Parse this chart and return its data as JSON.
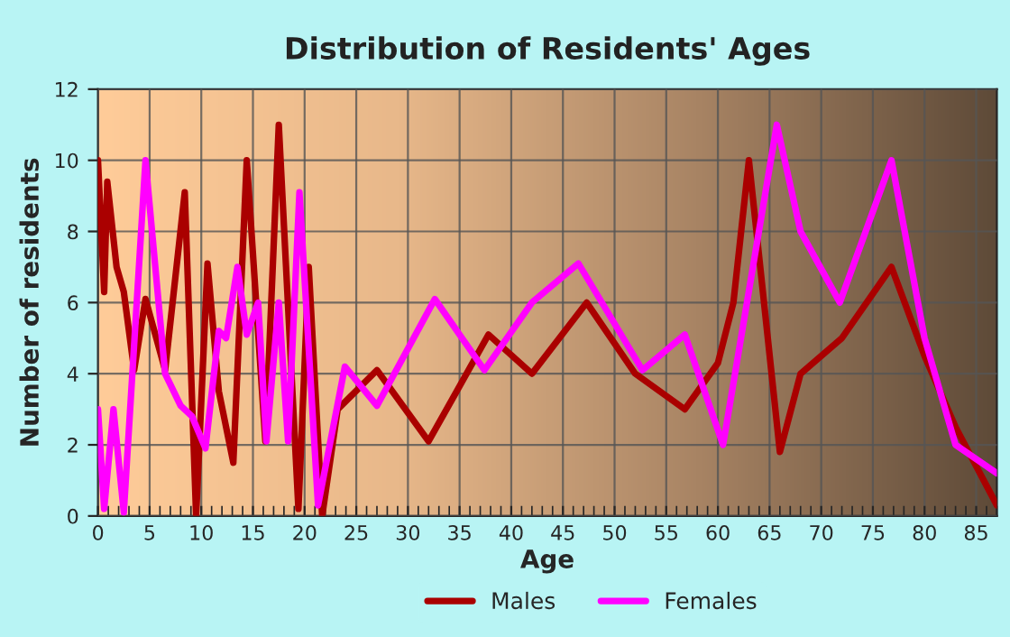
{
  "chart_data": {
    "type": "line",
    "title": "Distribution of Residents' Ages",
    "xlabel": "Age",
    "ylabel": "Number of residents",
    "xlim": [
      0,
      87
    ],
    "xticks": [
      0,
      5,
      10,
      15,
      20,
      25,
      30,
      35,
      40,
      45,
      50,
      55,
      60,
      65,
      70,
      75,
      80,
      85
    ],
    "ylim": [
      0,
      12
    ],
    "yticks": [
      0,
      2,
      4,
      6,
      8,
      10,
      12
    ],
    "grid": true,
    "legend": "bottom",
    "marker": "none",
    "line_style": "solid",
    "series": [
      {
        "name": "Males",
        "color": "#aa0000",
        "x": [
          0,
          0.6,
          0.9,
          1.8,
          2.5,
          3.5,
          4.6,
          6.5,
          8.4,
          9.5,
          10.6,
          11.7,
          13.1,
          14.4,
          16.2,
          17.5,
          19.4,
          20.4,
          21.7,
          23.2,
          27,
          32,
          37.8,
          42,
          47.3,
          52,
          56.8,
          60,
          61.5,
          63,
          66,
          68,
          72,
          76.8,
          80,
          83,
          87
        ],
        "values": [
          10,
          6.3,
          9.4,
          7,
          6.3,
          4.1,
          6.1,
          4.1,
          9.1,
          0,
          7.1,
          3.5,
          1.5,
          10,
          2.1,
          11,
          0.2,
          7,
          0,
          3,
          4.1,
          2.1,
          5.1,
          4,
          6,
          4,
          3,
          4.3,
          6,
          10,
          1.8,
          4,
          5,
          7,
          4.5,
          2.5,
          0.3
        ]
      },
      {
        "name": "Females",
        "color": "#ff00ff",
        "x": [
          0,
          0.6,
          1.5,
          2.5,
          4.6,
          6.5,
          8,
          9.1,
          10.4,
          11.7,
          12.4,
          13.5,
          14.4,
          15.5,
          16.3,
          17.5,
          18.4,
          19.5,
          21.3,
          23.9,
          27,
          32.6,
          37.4,
          42,
          46.5,
          52.7,
          56.8,
          60.5,
          65.7,
          68,
          71.8,
          76.8,
          80,
          83,
          87
        ],
        "values": [
          3,
          0.2,
          3,
          0.1,
          10,
          4,
          3.1,
          2.8,
          1.9,
          5.2,
          5,
          7,
          5.1,
          6,
          2.1,
          6,
          2.1,
          9.1,
          0.3,
          4.2,
          3.1,
          6.1,
          4.1,
          6,
          7.1,
          4.1,
          5.1,
          2,
          11,
          8,
          6,
          10,
          5,
          2,
          1.2
        ]
      }
    ]
  }
}
